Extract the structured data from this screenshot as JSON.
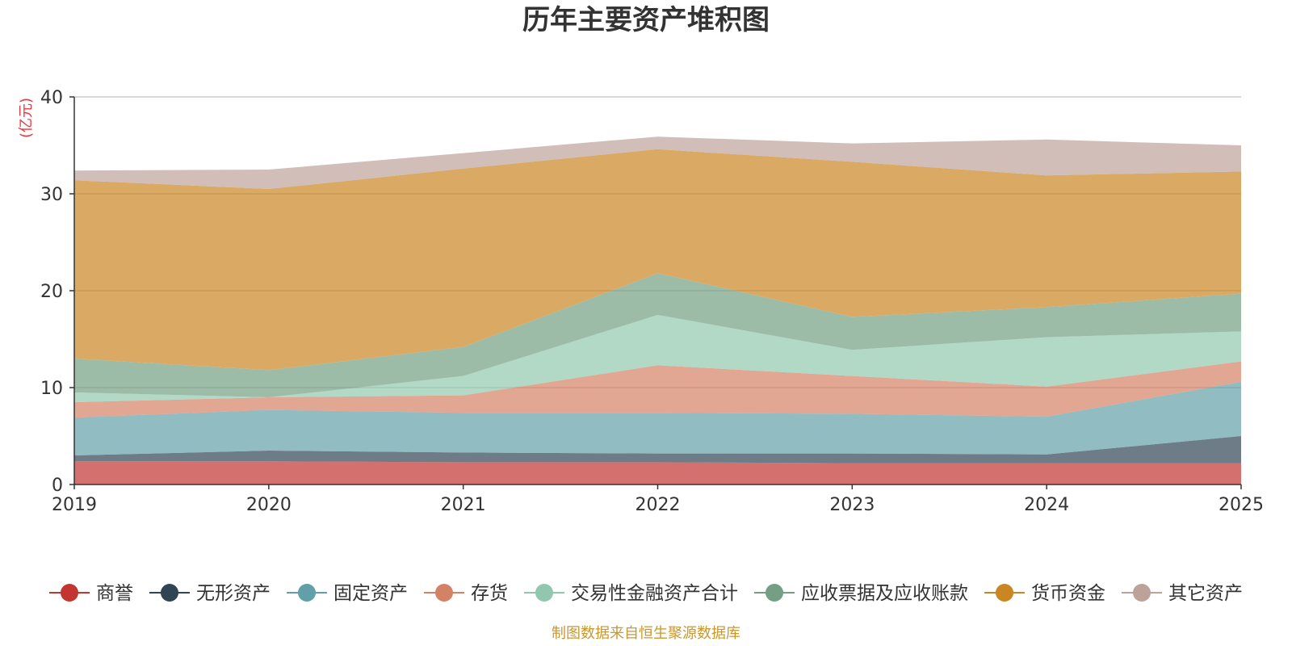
{
  "chart_data": {
    "type": "area",
    "title": "历年主要资产堆积图",
    "ylabel": "(亿元)",
    "xlabel": "",
    "ylim": [
      0,
      40
    ],
    "yticks": [
      0,
      10,
      20,
      30,
      40
    ],
    "categories": [
      "2019",
      "2020",
      "2021",
      "2022",
      "2023",
      "2024",
      "2025"
    ],
    "stacked": true,
    "grid": true,
    "legend_position": "bottom",
    "series": [
      {
        "name": "商誉",
        "color": "#c23531",
        "values": [
          2.4,
          2.4,
          2.3,
          2.3,
          2.2,
          2.2,
          2.2
        ]
      },
      {
        "name": "无形资产",
        "color": "#2f4554",
        "values": [
          0.6,
          1.1,
          1.0,
          0.9,
          1.0,
          0.9,
          2.8
        ]
      },
      {
        "name": "固定资产",
        "color": "#61a0a8",
        "values": [
          3.9,
          4.2,
          4.1,
          4.2,
          4.1,
          3.9,
          5.6
        ]
      },
      {
        "name": "存货",
        "color": "#d48265",
        "values": [
          1.6,
          1.3,
          1.8,
          4.9,
          3.9,
          3.1,
          2.1
        ]
      },
      {
        "name": "交易性金融资产合计",
        "color": "#91c7ae",
        "values": [
          1.0,
          0.0,
          2.0,
          5.2,
          2.7,
          5.1,
          3.1
        ]
      },
      {
        "name": "应收票据及应收账款",
        "color": "#749f83",
        "values": [
          3.5,
          2.8,
          3.0,
          4.3,
          3.4,
          3.1,
          3.9
        ]
      },
      {
        "name": "货币资金",
        "color": "#ca8622",
        "values": [
          18.4,
          18.7,
          18.4,
          12.8,
          16.0,
          13.6,
          12.6
        ]
      },
      {
        "name": "其它资产",
        "color": "#bda29a",
        "values": [
          1.0,
          2.0,
          1.6,
          1.3,
          1.9,
          3.7,
          2.7
        ]
      }
    ],
    "source": "制图数据来自恒生聚源数据库"
  }
}
